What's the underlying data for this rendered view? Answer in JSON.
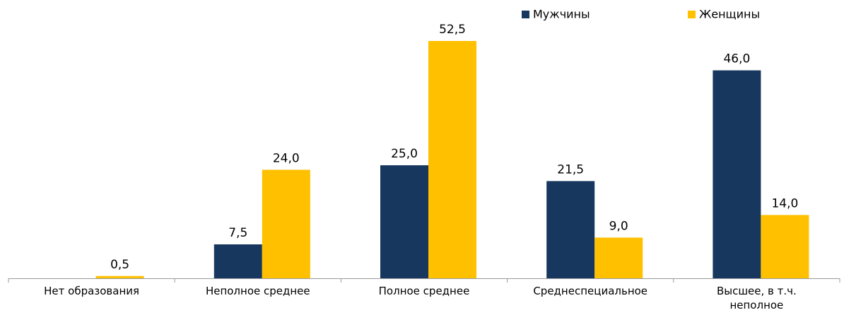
{
  "chart_data": {
    "type": "bar",
    "categories": [
      "Нет образования",
      "Неполное среднее",
      "Полное среднее",
      "Среднеспециальное",
      "Высшее, в т.ч. неполное"
    ],
    "series": [
      {
        "name": "Мужчины",
        "color": "#17375e",
        "values": [
          null,
          7.5,
          25.0,
          21.5,
          46.0
        ],
        "value_labels": [
          null,
          "7,5",
          "25,0",
          "21,5",
          "46,0"
        ]
      },
      {
        "name": "Женщины",
        "color": "#ffc000",
        "values": [
          0.5,
          24.0,
          52.5,
          9.0,
          14.0
        ],
        "value_labels": [
          "0,5",
          "24,0",
          "52,5",
          "9,0",
          "14,0"
        ]
      }
    ],
    "legend": "top-right"
  }
}
